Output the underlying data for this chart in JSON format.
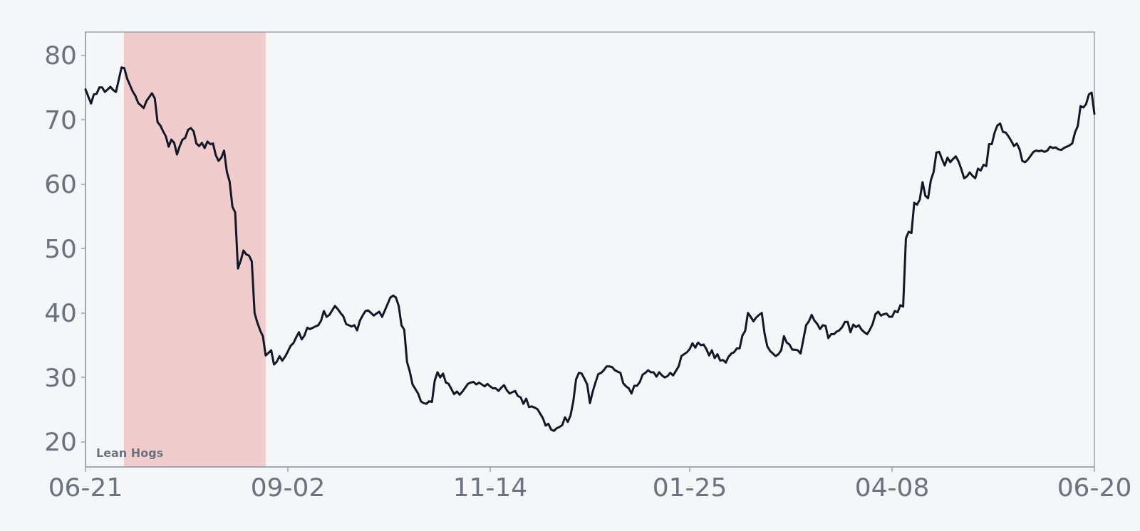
{
  "chart_data": {
    "type": "line",
    "categories": [
      "06-21",
      null,
      null,
      null,
      null,
      null,
      null,
      null,
      null,
      null,
      null,
      null,
      null,
      null,
      null,
      null,
      null,
      null,
      null,
      null,
      null,
      null,
      null,
      null,
      null,
      null,
      null,
      null,
      null,
      null,
      null,
      null,
      null,
      null,
      null,
      null,
      null,
      null,
      null,
      null,
      null,
      null,
      null,
      null,
      null,
      null,
      null,
      null,
      null,
      null,
      null,
      null,
      null,
      null,
      null,
      null,
      null,
      null,
      null,
      null,
      null,
      null,
      null,
      null,
      null,
      null,
      null,
      null,
      null,
      null,
      null,
      null,
      null,
      "09-02",
      null,
      null,
      null,
      null,
      null,
      null,
      null,
      null,
      null,
      null,
      null,
      null,
      null,
      null,
      null,
      null,
      null,
      null,
      null,
      null,
      null,
      null,
      null,
      null,
      null,
      null,
      null,
      null,
      null,
      null,
      null,
      null,
      null,
      null,
      null,
      null,
      null,
      null,
      null,
      null,
      null,
      null,
      null,
      null,
      null,
      null,
      null,
      null,
      null,
      null,
      null,
      null,
      null,
      null,
      null,
      null,
      null,
      null,
      null,
      null,
      null,
      null,
      null,
      null,
      null,
      null,
      null,
      null,
      null,
      null,
      null,
      null,
      "11-14",
      null,
      null,
      null,
      null,
      null,
      null,
      null,
      null,
      null,
      null,
      null,
      null,
      null,
      null,
      null,
      null,
      null,
      null,
      null,
      null,
      null,
      null,
      null,
      null,
      null,
      null,
      null,
      null,
      null,
      null,
      null,
      null,
      null,
      null,
      null,
      null,
      null,
      null,
      null,
      null,
      null,
      null,
      null,
      null,
      null,
      null,
      null,
      null,
      null,
      null,
      null,
      null,
      null,
      null,
      null,
      null,
      null,
      null,
      null,
      null,
      null,
      null,
      null,
      null,
      null,
      null,
      null,
      null,
      null,
      null,
      null,
      "01-25",
      null,
      null,
      null,
      null,
      null,
      null,
      null,
      null,
      null,
      null,
      null,
      null,
      null,
      null,
      null,
      null,
      null,
      null,
      null,
      null,
      null,
      null,
      null,
      null,
      null,
      null,
      null,
      null,
      null,
      null,
      null,
      null,
      null,
      null,
      null,
      null,
      null,
      null,
      null,
      null,
      null,
      null,
      null,
      null,
      null,
      null,
      null,
      null,
      null,
      null,
      null,
      null,
      null,
      null,
      null,
      null,
      null,
      null,
      null,
      null,
      null,
      null,
      null,
      null,
      null,
      null,
      null,
      null,
      null,
      null,
      null,
      null,
      "04-08",
      null,
      null,
      null,
      null,
      null,
      null,
      null,
      null,
      null,
      null,
      null,
      null,
      null,
      null,
      null,
      null,
      null,
      null,
      null,
      null,
      null,
      null,
      null,
      null,
      null,
      null,
      null,
      null,
      null,
      null,
      null,
      null,
      null,
      null,
      null,
      null,
      null,
      null,
      null,
      null,
      null,
      null,
      null,
      null,
      null,
      null,
      null,
      null,
      null,
      null,
      null,
      null,
      null,
      null,
      null,
      null,
      null,
      null,
      null,
      null,
      null,
      null,
      null,
      null,
      null,
      null,
      null,
      null,
      null,
      null,
      null,
      null,
      "06-20"
    ],
    "series": [
      {
        "color": "#111827",
        "values": [
          74.7,
          73.6,
          72.5,
          73.9,
          74.0,
          75.0,
          75.0,
          74.3,
          74.7,
          75.1,
          74.6,
          74.3,
          76.2,
          78.1,
          78.0,
          76.4,
          75.4,
          74.4,
          73.7,
          72.6,
          72.2,
          71.8,
          72.9,
          73.5,
          74.1,
          73.3,
          69.6,
          69.1,
          68.2,
          67.4,
          65.8,
          66.9,
          66.4,
          64.6,
          65.9,
          66.9,
          67.2,
          68.4,
          68.7,
          68.2,
          66.3,
          65.9,
          66.4,
          65.6,
          66.6,
          66.2,
          66.3,
          64.5,
          63.6,
          64.1,
          65.2,
          61.9,
          60.4,
          56.5,
          55.6,
          46.9,
          48.1,
          49.7,
          49.1,
          48.9,
          48.0,
          40.0,
          38.5,
          37.3,
          36.4,
          33.4,
          33.8,
          34.2,
          32.0,
          32.4,
          33.3,
          32.6,
          33.2,
          34.0,
          34.9,
          35.3,
          36.2,
          37.0,
          35.9,
          36.5,
          37.7,
          37.5,
          37.7,
          37.9,
          38.1,
          38.8,
          40.3,
          39.4,
          39.7,
          40.4,
          41.1,
          40.6,
          40.0,
          39.5,
          38.3,
          38.1,
          37.9,
          38.1,
          37.3,
          38.8,
          39.6,
          40.3,
          40.4,
          40.0,
          39.6,
          39.9,
          40.2,
          39.4,
          40.4,
          41.4,
          42.4,
          42.7,
          42.4,
          41.1,
          38.1,
          37.4,
          32.4,
          30.9,
          28.9,
          28.2,
          27.5,
          26.3,
          26.0,
          25.9,
          26.3,
          26.2,
          29.5,
          30.8,
          30.0,
          30.6,
          29.2,
          29.0,
          28.2,
          27.4,
          27.8,
          27.3,
          27.8,
          28.4,
          29.0,
          29.2,
          29.3,
          28.9,
          29.2,
          28.9,
          28.6,
          29.0,
          28.6,
          28.3,
          28.3,
          27.9,
          28.4,
          28.8,
          28.0,
          27.5,
          27.7,
          27.9,
          27.1,
          26.9,
          25.9,
          26.7,
          25.4,
          25.5,
          25.3,
          25.1,
          24.4,
          23.7,
          22.5,
          22.8,
          21.9,
          21.7,
          22.1,
          22.3,
          22.6,
          23.8,
          23.1,
          24.1,
          26.3,
          29.7,
          30.7,
          30.6,
          29.8,
          28.9,
          26.0,
          27.8,
          29.2,
          30.5,
          30.7,
          31.1,
          31.7,
          31.7,
          31.6,
          31.1,
          30.9,
          30.7,
          29.1,
          28.6,
          28.3,
          27.5,
          28.7,
          28.7,
          29.3,
          30.4,
          30.7,
          31.1,
          30.8,
          30.8,
          30.1,
          30.8,
          30.3,
          30.0,
          30.2,
          30.7,
          30.3,
          31.0,
          31.7,
          33.3,
          33.6,
          33.9,
          34.4,
          35.3,
          34.6,
          35.4,
          35.0,
          35.1,
          34.4,
          33.4,
          34.2,
          33.0,
          33.6,
          32.6,
          32.7,
          32.3,
          33.2,
          33.7,
          33.9,
          34.5,
          34.5,
          36.5,
          37.2,
          40.0,
          39.4,
          38.7,
          39.3,
          39.7,
          40.0,
          36.8,
          34.8,
          34.1,
          33.7,
          33.3,
          33.6,
          34.2,
          36.4,
          35.4,
          35.1,
          34.3,
          34.3,
          34.2,
          33.7,
          35.9,
          38.1,
          38.7,
          39.7,
          38.8,
          38.3,
          37.5,
          38.1,
          38.0,
          36.1,
          36.7,
          36.7,
          37.1,
          37.3,
          37.8,
          38.6,
          38.6,
          37.0,
          38.2,
          37.8,
          38.1,
          37.4,
          37.0,
          36.7,
          37.4,
          38.3,
          39.8,
          40.2,
          39.6,
          39.8,
          39.9,
          39.4,
          39.4,
          40.3,
          40.1,
          41.2,
          41.0,
          51.6,
          52.6,
          52.4,
          57.1,
          56.8,
          57.6,
          60.3,
          58.2,
          57.8,
          60.6,
          61.9,
          64.9,
          65.0,
          63.9,
          62.9,
          64.1,
          63.4,
          63.9,
          64.3,
          63.5,
          62.3,
          60.9,
          61.2,
          61.8,
          61.3,
          60.9,
          62.4,
          62.1,
          63.0,
          62.8,
          66.2,
          66.2,
          68.0,
          69.1,
          69.4,
          68.1,
          68.0,
          67.4,
          66.7,
          65.9,
          66.3,
          65.4,
          63.6,
          63.4,
          63.8,
          64.4,
          65.0,
          65.2,
          65.1,
          65.2,
          65.0,
          65.2,
          65.8,
          65.6,
          65.7,
          65.4,
          65.3,
          65.6,
          65.8,
          66.0,
          66.3,
          68.0,
          69.0,
          72.1,
          71.9,
          72.4,
          73.9,
          74.2,
          70.9
        ]
      }
    ],
    "ylim": [
      16.1,
      83.6
    ],
    "yticks": [
      20,
      30,
      40,
      50,
      60,
      70,
      80
    ],
    "annotations": [
      "Lean Hogs"
    ],
    "grid": false,
    "marker": "none",
    "line_style": "solid"
  }
}
